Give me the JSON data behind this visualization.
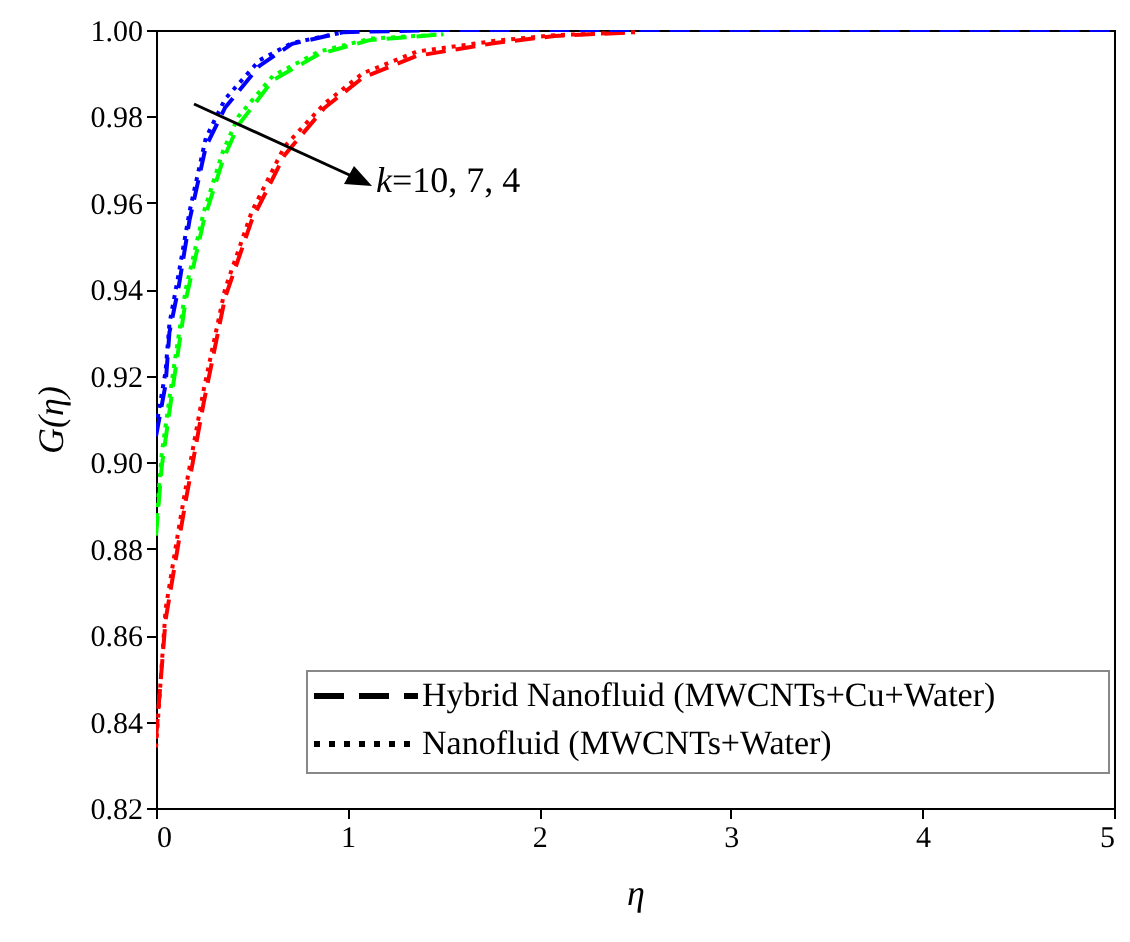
{
  "chart_data": {
    "type": "line",
    "xlabel": "η",
    "ylabel": "G(η)",
    "xlim": [
      0,
      5
    ],
    "ylim": [
      0.82,
      1.0
    ],
    "xticks": [
      0,
      1,
      2,
      3,
      4,
      5
    ],
    "yticks": [
      {
        "value": 0.82,
        "label": "0.82"
      },
      {
        "value": 0.84,
        "label": "0.84"
      },
      {
        "value": 0.86,
        "label": "0.86"
      },
      {
        "value": 0.88,
        "label": "0.88"
      },
      {
        "value": 0.9,
        "label": "0.90"
      },
      {
        "value": 0.92,
        "label": "0.92"
      },
      {
        "value": 0.94,
        "label": "0.94"
      },
      {
        "value": 0.96,
        "label": "0.96"
      },
      {
        "value": 0.98,
        "label": "0.98"
      },
      {
        "value": 1.0,
        "label": "1.00"
      }
    ],
    "grid": false,
    "annotations": [
      "k=10, 7, 4",
      "Hybrid Nanofluid (MWCNTs+Cu+Water)",
      "Nanofluid (MWCNTs+Water)"
    ],
    "series": [
      {
        "color": "#0000ff",
        "line_style": "dashed",
        "x": [
          0,
          0.05,
          0.07,
          0.12,
          0.175,
          0.26,
          0.36,
          0.54,
          0.71,
          0.98,
          1.5,
          2,
          3,
          4,
          5
        ],
        "values": [
          0.906,
          0.918,
          0.93,
          0.941,
          0.956,
          0.973,
          0.982,
          0.9917,
          0.9968,
          0.9995,
          1.0,
          1.0,
          1.0,
          1.0,
          1.0
        ]
      },
      {
        "color": "#0000ff",
        "line_style": "dotted",
        "x": [
          0,
          0.05,
          0.07,
          0.12,
          0.175,
          0.26,
          0.36,
          0.54,
          0.71,
          0.98
        ],
        "values": [
          0.908,
          0.921,
          0.932,
          0.944,
          0.958,
          0.975,
          0.984,
          0.993,
          0.997,
          0.9995
        ]
      },
      {
        "color": "#00ff00",
        "line_style": "dashed",
        "x": [
          0,
          0.03,
          0.09,
          0.155,
          0.25,
          0.35,
          0.43,
          0.61,
          0.85,
          1.12,
          1.5
        ],
        "values": [
          0.883,
          0.899,
          0.918,
          0.9375,
          0.956,
          0.97,
          0.978,
          0.9884,
          0.9944,
          0.9977,
          0.999
        ]
      },
      {
        "color": "#00ff00",
        "line_style": "dotted",
        "x": [
          0,
          0.03,
          0.09,
          0.155,
          0.25,
          0.35,
          0.43,
          0.61,
          0.85,
          1.12,
          1.5
        ],
        "values": [
          0.885,
          0.902,
          0.921,
          0.94,
          0.958,
          0.972,
          0.98,
          0.9894,
          0.995,
          0.998,
          0.999
        ]
      },
      {
        "color": "#ff0000",
        "line_style": "dashed",
        "x": [
          0,
          0.05,
          0.12,
          0.155,
          0.25,
          0.36,
          0.5,
          0.67,
          0.88,
          1.08,
          1.36,
          1.77,
          2.08,
          2.5
        ],
        "values": [
          0.836,
          0.8635,
          0.882,
          0.891,
          0.914,
          0.938,
          0.956,
          0.971,
          0.982,
          0.989,
          0.994,
          0.997,
          0.9986,
          0.9995
        ]
      },
      {
        "color": "#ff0000",
        "line_style": "dotted",
        "x": [
          0,
          0.05,
          0.12,
          0.155,
          0.25,
          0.36,
          0.5,
          0.67,
          0.88,
          1.08,
          1.36,
          1.77,
          2.08,
          2.5
        ],
        "values": [
          0.834,
          0.866,
          0.885,
          0.894,
          0.917,
          0.94,
          0.958,
          0.973,
          0.983,
          0.99,
          0.995,
          0.9975,
          0.9988,
          0.9995
        ]
      }
    ]
  }
}
